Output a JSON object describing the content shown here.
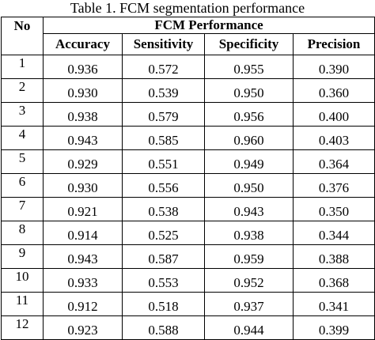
{
  "caption": "Table 1. FCM segmentation performance",
  "table": {
    "header_no": "No",
    "header_group": "FCM Performance",
    "columns": [
      "Accuracy",
      "Sensitivity",
      "Specificity",
      "Precision"
    ],
    "rows": [
      {
        "no": "1",
        "accuracy": "0.936",
        "sensitivity": "0.572",
        "specificity": "0.955",
        "precision": "0.390"
      },
      {
        "no": "2",
        "accuracy": "0.930",
        "sensitivity": "0.539",
        "specificity": "0.950",
        "precision": "0.360"
      },
      {
        "no": "3",
        "accuracy": "0.938",
        "sensitivity": "0.579",
        "specificity": "0.956",
        "precision": "0.400"
      },
      {
        "no": "4",
        "accuracy": "0.943",
        "sensitivity": "0.585",
        "specificity": "0.960",
        "precision": "0.403"
      },
      {
        "no": "5",
        "accuracy": "0.929",
        "sensitivity": "0.551",
        "specificity": "0.949",
        "precision": "0.364"
      },
      {
        "no": "6",
        "accuracy": "0.930",
        "sensitivity": "0.556",
        "specificity": "0.950",
        "precision": "0.376"
      },
      {
        "no": "7",
        "accuracy": "0.921",
        "sensitivity": "0.538",
        "specificity": "0.943",
        "precision": "0.350"
      },
      {
        "no": "8",
        "accuracy": "0.914",
        "sensitivity": "0.525",
        "specificity": "0.938",
        "precision": "0.344"
      },
      {
        "no": "9",
        "accuracy": "0.943",
        "sensitivity": "0.587",
        "specificity": "0.959",
        "precision": "0.388"
      },
      {
        "no": "10",
        "accuracy": "0.933",
        "sensitivity": "0.553",
        "specificity": "0.952",
        "precision": "0.368"
      },
      {
        "no": "11",
        "accuracy": "0.912",
        "sensitivity": "0.518",
        "specificity": "0.937",
        "precision": "0.341"
      },
      {
        "no": "12",
        "accuracy": "0.923",
        "sensitivity": "0.588",
        "specificity": "0.944",
        "precision": "0.399"
      }
    ]
  }
}
